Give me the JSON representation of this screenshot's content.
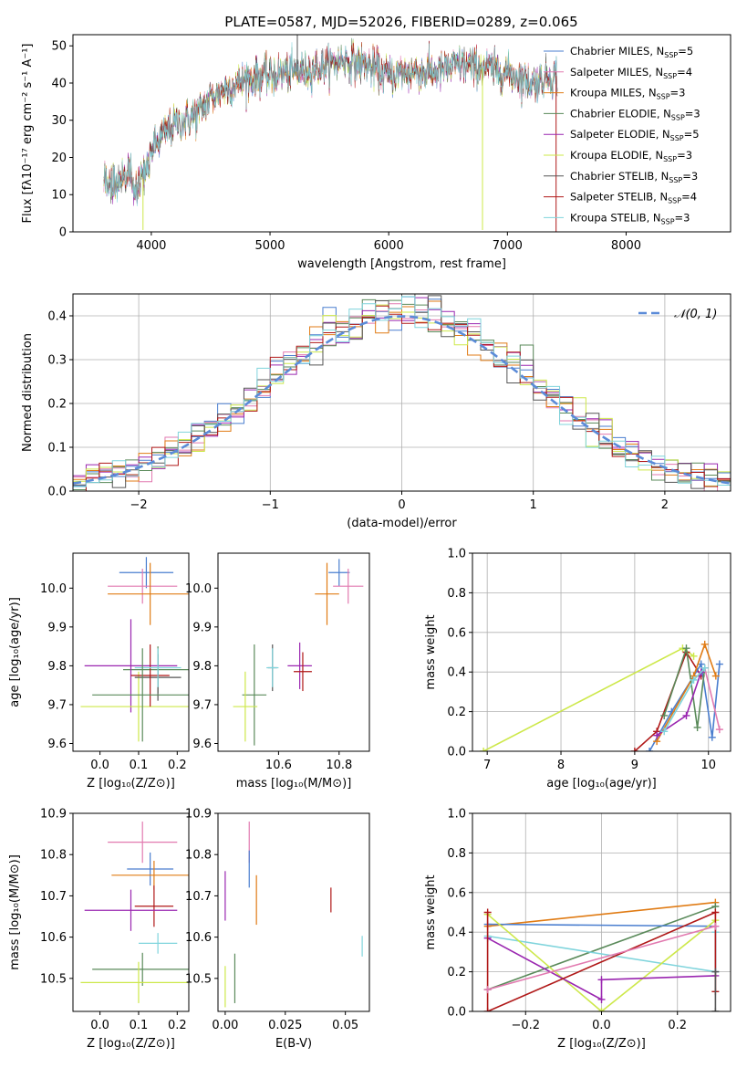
{
  "title": "PLATE=0587, MJD=52026, FIBERID=0289, z=0.065",
  "colors": {
    "Chabrier MILES": "#4a7ecf",
    "Salpeter MILES": "#e27ab0",
    "Kroupa MILES": "#e07b14",
    "Chabrier ELODIE": "#5a8a5a",
    "Salpeter ELODIE": "#9a26b0",
    "Kroupa ELODIE": "#cde84a",
    "Chabrier STELIB": "#555555",
    "Salpeter STELIB": "#b01818",
    "Kroupa STELIB": "#7fd4dc"
  },
  "chart_data": [
    {
      "id": "spectrum",
      "type": "line",
      "title": "PLATE=0587, MJD=52026, FIBERID=0289, z=0.065",
      "xlabel": "wavelength [Angstrom, rest frame]",
      "ylabel": "Flux [fλ10⁻¹⁷ erg cm⁻² s⁻¹ A⁻¹]",
      "xlim": [
        3340,
        8880
      ],
      "ylim": [
        0,
        53
      ],
      "xticks": [
        4000,
        5000,
        6000,
        7000,
        8000
      ],
      "yticks": [
        0,
        10,
        20,
        30,
        40,
        50
      ],
      "grid": false,
      "legend_position": "lower-right",
      "legend": [
        {
          "label": "Chabrier MILES, N",
          "sub": "SSP",
          "tail": "=5"
        },
        {
          "label": "Salpeter MILES, N",
          "sub": "SSP",
          "tail": "=4"
        },
        {
          "label": "Kroupa MILES, N",
          "sub": "SSP",
          "tail": "=3"
        },
        {
          "label": "Chabrier ELODIE, N",
          "sub": "SSP",
          "tail": "=3"
        },
        {
          "label": "Salpeter ELODIE, N",
          "sub": "SSP",
          "tail": "=5"
        },
        {
          "label": "Kroupa ELODIE, N",
          "sub": "SSP",
          "tail": "=3"
        },
        {
          "label": "Chabrier STELIB, N",
          "sub": "SSP",
          "tail": "=3"
        },
        {
          "label": "Salpeter STELIB, N",
          "sub": "SSP",
          "tail": "=4"
        },
        {
          "label": "Kroupa STELIB, N",
          "sub": "SSP",
          "tail": "=3"
        }
      ],
      "continuum": {
        "x": [
          3600,
          3700,
          3800,
          3900,
          4000,
          4100,
          4200,
          4300,
          4400,
          4500,
          4600,
          4800,
          5000,
          5200,
          5400,
          5600,
          5800,
          6000,
          6200,
          6400,
          6600,
          6800,
          7000,
          7200,
          7400
        ],
        "y": [
          13,
          14,
          15,
          11,
          22,
          26,
          29,
          30,
          32,
          36,
          38,
          41,
          42,
          43,
          44,
          46,
          45,
          42,
          43,
          43,
          45,
          44,
          43,
          40,
          42
        ]
      },
      "features": [
        {
          "x": 5230,
          "y": 53
        },
        {
          "x": 3930,
          "y": 0.5
        },
        {
          "x": 6790,
          "y": 0.5
        },
        {
          "x": 7410,
          "y": 0
        }
      ]
    },
    {
      "id": "residuals",
      "type": "histogram",
      "xlabel": "(data-model)/error",
      "ylabel": "Normed distribution",
      "xlim": [
        -2.5,
        2.5
      ],
      "ylim": [
        0,
        0.45
      ],
      "xticks": [
        -2,
        -1,
        0,
        1,
        2
      ],
      "yticks": [
        0.0,
        0.1,
        0.2,
        0.3,
        0.4
      ],
      "grid": true,
      "legend_position": "top-right",
      "legend": [
        {
          "label": "𝒩(0, 1)"
        }
      ],
      "bin_width": 0.1,
      "reference_curve": "normal(0,1)"
    },
    {
      "id": "age-vs-Z",
      "type": "scatter",
      "xlabel": "Z [log₁₀(Z/Z⊙)]",
      "ylabel": "age  [log₁₀(age/yr)]",
      "xlim": [
        -0.07,
        0.23
      ],
      "ylim": [
        9.58,
        10.09
      ],
      "xticks": [
        0.0,
        0.1,
        0.2
      ],
      "yticks": [
        9.6,
        9.7,
        9.8,
        9.9,
        10.0
      ],
      "grid": false,
      "points": [
        {
          "model": "Chabrier MILES",
          "x": 0.12,
          "y": 10.04,
          "xerr": 0.07,
          "yerr": 0.04
        },
        {
          "model": "Salpeter MILES",
          "x": 0.11,
          "y": 10.005,
          "xerr": 0.09,
          "yerr": 0.045
        },
        {
          "model": "Kroupa MILES",
          "x": 0.13,
          "y": 9.985,
          "xerr": 0.11,
          "yerr": 0.08
        },
        {
          "model": "Chabrier ELODIE",
          "x": 0.15,
          "y": 9.79,
          "xerr": 0.09,
          "yerr": 0.06
        },
        {
          "model": "Salpeter ELODIE",
          "x": 0.08,
          "y": 9.8,
          "xerr": 0.12,
          "yerr": 0.12
        },
        {
          "model": "Kroupa ELODIE",
          "x": 0.1,
          "y": 9.695,
          "xerr": 0.15,
          "yerr": 0.09
        },
        {
          "model": "Chabrier STELIB",
          "x": 0.15,
          "y": 9.77,
          "xerr": 0.06,
          "yerr": 0.06
        },
        {
          "model": "Salpeter STELIB",
          "x": 0.13,
          "y": 9.775,
          "xerr": 0.05,
          "yerr": 0.08
        },
        {
          "model": "Kroupa STELIB",
          "x": 0.15,
          "y": 9.795,
          "xerr": 0.06,
          "yerr": 0.05
        },
        {
          "model": "Chabrier ELODIE",
          "x": 0.11,
          "y": 9.725,
          "xerr": 0.13,
          "yerr": 0.12
        }
      ]
    },
    {
      "id": "age-vs-mass",
      "type": "scatter",
      "xlabel": "mass [log₁₀(M/M⊙)]",
      "ylabel": "",
      "xlim": [
        10.4,
        10.9
      ],
      "ylim": [
        9.58,
        10.09
      ],
      "xticks": [
        10.6,
        10.8
      ],
      "yticks": [
        9.6,
        9.7,
        9.8,
        9.9,
        10.0
      ],
      "grid": false,
      "points": [
        {
          "model": "Chabrier MILES",
          "x": 10.8,
          "y": 10.04,
          "xerr": 0.035,
          "yerr": 0.035
        },
        {
          "model": "Salpeter MILES",
          "x": 10.83,
          "y": 10.005,
          "xerr": 0.05,
          "yerr": 0.045
        },
        {
          "model": "Kroupa MILES",
          "x": 10.76,
          "y": 9.985,
          "xerr": 0.04,
          "yerr": 0.08
        },
        {
          "model": "Chabrier ELODIE",
          "x": 10.52,
          "y": 9.725,
          "xerr": 0.04,
          "yerr": 0.13
        },
        {
          "model": "Salpeter ELODIE",
          "x": 10.67,
          "y": 9.8,
          "xerr": 0.04,
          "yerr": 0.06
        },
        {
          "model": "Kroupa ELODIE",
          "x": 10.49,
          "y": 9.695,
          "xerr": 0.04,
          "yerr": 0.09
        },
        {
          "model": "Chabrier STELIB",
          "x": 10.58,
          "y": 9.795,
          "xerr": 0.015,
          "yerr": 0.06
        },
        {
          "model": "Salpeter STELIB",
          "x": 10.68,
          "y": 9.785,
          "xerr": 0.03,
          "yerr": 0.05
        },
        {
          "model": "Kroupa STELIB",
          "x": 10.58,
          "y": 9.795,
          "xerr": 0.02,
          "yerr": 0.05
        }
      ]
    },
    {
      "id": "mass-weight-vs-age",
      "type": "line",
      "xlabel": "age  [log₁₀(age/yr)]",
      "ylabel": "mass weight",
      "xlim": [
        6.8,
        10.3
      ],
      "ylim": [
        0,
        1.0
      ],
      "xticks": [
        7,
        8,
        9,
        10
      ],
      "yticks": [
        0.0,
        0.2,
        0.4,
        0.6,
        0.8,
        1.0
      ],
      "grid": true,
      "series": [
        {
          "model": "Kroupa ELODIE",
          "x": [
            6.95,
            9.65,
            9.8
          ],
          "y": [
            0.0,
            0.52,
            0.48
          ]
        },
        {
          "model": "Salpeter STELIB",
          "x": [
            9.0,
            9.3,
            9.7,
            9.9
          ],
          "y": [
            0.0,
            0.1,
            0.5,
            0.38
          ]
        },
        {
          "model": "Chabrier MILES",
          "x": [
            9.2,
            9.5,
            9.9,
            10.05,
            10.15
          ],
          "y": [
            0.0,
            0.2,
            0.44,
            0.07,
            0.44
          ]
        },
        {
          "model": "Kroupa MILES",
          "x": [
            9.3,
            9.8,
            9.95,
            10.1
          ],
          "y": [
            0.05,
            0.38,
            0.54,
            0.38
          ]
        },
        {
          "model": "Chabrier ELODIE",
          "x": [
            9.4,
            9.7,
            9.85,
            9.95
          ],
          "y": [
            0.18,
            0.52,
            0.12,
            0.42
          ]
        },
        {
          "model": "Salpeter ELODIE",
          "x": [
            9.3,
            9.7,
            9.9
          ],
          "y": [
            0.08,
            0.18,
            0.4
          ]
        },
        {
          "model": "Salpeter MILES",
          "x": [
            9.95,
            10.15
          ],
          "y": [
            0.42,
            0.11
          ]
        },
        {
          "model": "Kroupa STELIB",
          "x": [
            9.4,
            9.8,
            9.95
          ],
          "y": [
            0.1,
            0.36,
            0.42
          ]
        }
      ]
    },
    {
      "id": "mass-vs-Z",
      "type": "scatter",
      "xlabel": "Z [log₁₀(Z/Z⊙)]",
      "ylabel": "mass [log₁₀(M/M⊙)]",
      "xlim": [
        -0.07,
        0.23
      ],
      "ylim": [
        10.42,
        10.9
      ],
      "xticks": [
        0.0,
        0.1,
        0.2
      ],
      "yticks": [
        10.5,
        10.6,
        10.7,
        10.8,
        10.9
      ],
      "grid": false,
      "points": [
        {
          "model": "Salpeter MILES",
          "x": 0.11,
          "y": 10.83,
          "xerr": 0.09,
          "yerr": 0.05
        },
        {
          "model": "Chabrier MILES",
          "x": 0.13,
          "y": 10.765,
          "xerr": 0.06,
          "yerr": 0.04
        },
        {
          "model": "Kroupa MILES",
          "x": 0.14,
          "y": 10.75,
          "xerr": 0.11,
          "yerr": 0.035
        },
        {
          "model": "Salpeter STELIB",
          "x": 0.14,
          "y": 10.675,
          "xerr": 0.05,
          "yerr": 0.05
        },
        {
          "model": "Salpeter ELODIE",
          "x": 0.08,
          "y": 10.665,
          "xerr": 0.12,
          "yerr": 0.05
        },
        {
          "model": "Kroupa STELIB",
          "x": 0.15,
          "y": 10.585,
          "xerr": 0.05,
          "yerr": 0.025
        },
        {
          "model": "Chabrier ELODIE",
          "x": 0.11,
          "y": 10.522,
          "xerr": 0.13,
          "yerr": 0.04
        },
        {
          "model": "Kroupa ELODIE",
          "x": 0.1,
          "y": 10.49,
          "xerr": 0.15,
          "yerr": 0.05
        }
      ]
    },
    {
      "id": "mass-vs-EBV",
      "type": "scatter",
      "xlabel": "E(B-V)",
      "ylabel": "",
      "xlim": [
        -0.003,
        0.06
      ],
      "ylim": [
        10.42,
        10.9
      ],
      "xticks": [
        0.0,
        0.025,
        0.05
      ],
      "yticks": [
        10.5,
        10.6,
        10.7,
        10.8,
        10.9
      ],
      "grid": false,
      "points": [
        {
          "model": "Salpeter MILES",
          "x": 0.01,
          "y": 10.83,
          "xerr": 0,
          "yerr": 0.05
        },
        {
          "model": "Chabrier MILES",
          "x": 0.01,
          "y": 10.765,
          "xerr": 0,
          "yerr": 0.045
        },
        {
          "model": "Kroupa MILES",
          "x": 0.013,
          "y": 10.69,
          "xerr": 0,
          "yerr": 0.06
        },
        {
          "model": "Salpeter ELODIE",
          "x": 0.0,
          "y": 10.7,
          "xerr": 0,
          "yerr": 0.06
        },
        {
          "model": "Salpeter STELIB",
          "x": 0.044,
          "y": 10.69,
          "xerr": 0,
          "yerr": 0.03
        },
        {
          "model": "Kroupa STELIB",
          "x": 0.057,
          "y": 10.578,
          "xerr": 0,
          "yerr": 0.025
        },
        {
          "model": "Chabrier ELODIE",
          "x": 0.004,
          "y": 10.5,
          "xerr": 0,
          "yerr": 0.06
        },
        {
          "model": "Kroupa ELODIE",
          "x": 0.0,
          "y": 10.48,
          "xerr": 0,
          "yerr": 0.05
        }
      ]
    },
    {
      "id": "mass-weight-vs-Z",
      "type": "line",
      "xlabel": "Z [log₁₀(Z/Z⊙)]",
      "ylabel": "mass weight",
      "xlim": [
        -0.34,
        0.34
      ],
      "ylim": [
        0,
        1.0
      ],
      "xticks": [
        -0.2,
        0.0,
        0.2
      ],
      "yticks": [
        0.0,
        0.2,
        0.4,
        0.6,
        0.8,
        1.0
      ],
      "grid": true,
      "series": [
        {
          "model": "Kroupa MILES",
          "x": [
            -0.3,
            0.3
          ],
          "y": [
            0.43,
            0.55
          ]
        },
        {
          "model": "Chabrier ELODIE",
          "x": [
            -0.3,
            0.3
          ],
          "y": [
            0.11,
            0.53
          ]
        },
        {
          "model": "Chabrier MILES",
          "x": [
            -0.3,
            0.3,
            0.3
          ],
          "y": [
            0.44,
            0.43,
            0.2
          ]
        },
        {
          "model": "Kroupa STELIB",
          "x": [
            -0.3,
            0.3,
            0.3
          ],
          "y": [
            0.38,
            0.2,
            0.4
          ]
        },
        {
          "model": "Kroupa ELODIE",
          "x": [
            -0.3,
            0.0,
            0.3
          ],
          "y": [
            0.49,
            0.0,
            0.46
          ]
        },
        {
          "model": "Salpeter ELODIE",
          "x": [
            -0.3,
            -0.0,
            0.0,
            0.3
          ],
          "y": [
            0.37,
            0.06,
            0.16,
            0.18
          ]
        },
        {
          "model": "Salpeter STELIB",
          "x": [
            -0.3,
            -0.3,
            0.3,
            0.3
          ],
          "y": [
            0.5,
            0.0,
            0.5,
            0.1
          ]
        },
        {
          "model": "Salpeter MILES",
          "x": [
            -0.3,
            0.3
          ],
          "y": [
            0.11,
            0.43
          ]
        },
        {
          "model": "Chabrier STELIB",
          "x": [
            0.3,
            0.3
          ],
          "y": [
            0.0,
            0.2
          ]
        }
      ]
    }
  ]
}
